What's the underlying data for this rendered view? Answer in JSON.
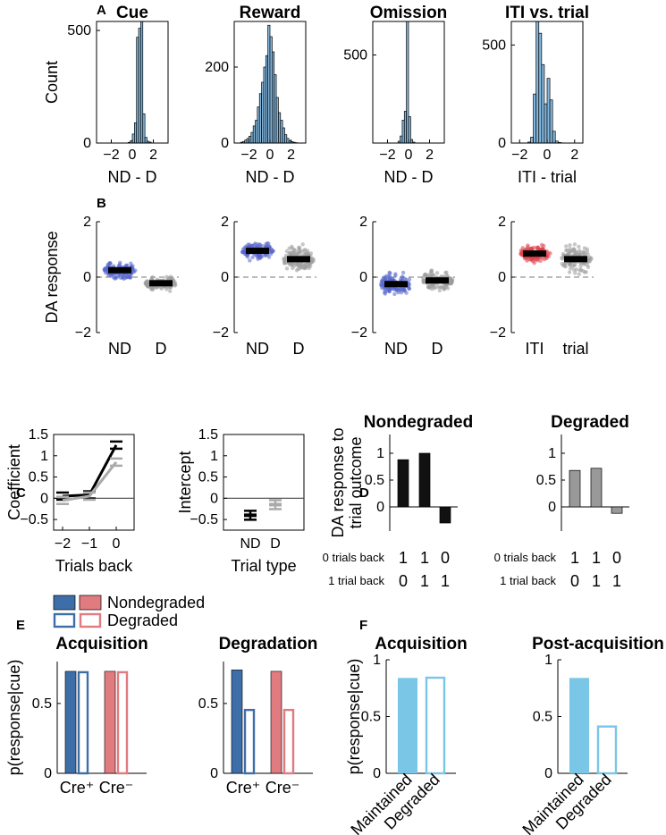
{
  "panel_labels": [
    "A",
    "B",
    "C",
    "D",
    "E",
    "F"
  ],
  "chart_data": [
    {
      "id": "A1",
      "type": "bar",
      "subtype": "histogram",
      "title": "Cue",
      "xlabel": "ND - D",
      "ylabel": "Count",
      "xlim": [
        -3.4,
        3.4
      ],
      "ylim": [
        0,
        540
      ],
      "xticks": [
        "−2",
        "0",
        "2"
      ],
      "yticks": [
        "0",
        "500"
      ],
      "bin_edges": [
        -0.4,
        -0.2,
        0,
        0.2,
        0.4,
        0.6,
        0.8,
        1.0,
        1.2,
        1.4,
        1.6,
        1.8
      ],
      "values": [
        3,
        10,
        40,
        90,
        470,
        510,
        540,
        130,
        25,
        8,
        4
      ],
      "color": "#84b8df"
    },
    {
      "id": "A2",
      "type": "bar",
      "subtype": "histogram",
      "title": "Reward",
      "xlabel": "ND - D",
      "ylabel": "",
      "xlim": [
        -3.4,
        3.4
      ],
      "ylim": [
        0,
        320
      ],
      "xticks": [
        "−2",
        "0",
        "2"
      ],
      "yticks": [
        "0",
        "200"
      ],
      "bin_edges": [
        -2.8,
        -2.6,
        -2.4,
        -2.2,
        -2.0,
        -1.8,
        -1.6,
        -1.4,
        -1.2,
        -1.0,
        -0.8,
        -0.6,
        -0.4,
        -0.2,
        0,
        0.2,
        0.4,
        0.6,
        0.8,
        1.0,
        1.2,
        1.4,
        1.6,
        1.8,
        2.0,
        2.2,
        2.4,
        2.6
      ],
      "values": [
        2,
        4,
        8,
        12,
        18,
        28,
        45,
        60,
        95,
        130,
        160,
        200,
        230,
        310,
        280,
        240,
        180,
        120,
        80,
        60,
        40,
        22,
        12,
        6,
        4,
        2,
        1
      ],
      "color": "#84b8df"
    },
    {
      "id": "A3",
      "type": "bar",
      "subtype": "histogram",
      "title": "Omission",
      "xlabel": "ND - D",
      "ylabel": "",
      "xlim": [
        -3.4,
        3.4
      ],
      "ylim": [
        0,
        690
      ],
      "xticks": [
        "−2",
        "0",
        "2"
      ],
      "yticks": [
        "500"
      ],
      "bin_edges": [
        -1.0,
        -0.8,
        -0.6,
        -0.4,
        -0.2,
        0,
        0.2,
        0.4,
        0.6
      ],
      "values": [
        10,
        40,
        130,
        180,
        690,
        150,
        20,
        5
      ],
      "color": "#84b8df"
    },
    {
      "id": "A4",
      "type": "bar",
      "subtype": "histogram",
      "title": "ITI vs. trial",
      "xlabel": "ITI - trial",
      "ylabel": "",
      "xlim": [
        -2.6,
        2.6
      ],
      "ylim": [
        0,
        620
      ],
      "xticks": [
        "−2",
        "0",
        "2"
      ],
      "yticks": [
        "0",
        "500"
      ],
      "bin_edges": [
        -1.4,
        -1.2,
        -1.0,
        -0.8,
        -0.6,
        -0.4,
        -0.2,
        0,
        0.2,
        0.4,
        0.6,
        0.8,
        1.0,
        1.2
      ],
      "values": [
        5,
        30,
        250,
        620,
        560,
        400,
        200,
        330,
        220,
        60,
        10,
        3,
        1
      ],
      "color": "#84b8df"
    },
    {
      "id": "B1",
      "type": "scatter",
      "subtype": "swarm",
      "ylabel": "DA response",
      "ylim": [
        -2,
        2
      ],
      "yticks": [
        "−2",
        "0",
        "2"
      ],
      "categories": [
        "ND",
        "D"
      ],
      "means": [
        0.25,
        -0.22
      ],
      "spreads": [
        0.22,
        0.18
      ],
      "colors": [
        "#5566cc",
        "#9a9a9a"
      ]
    },
    {
      "id": "B2",
      "type": "scatter",
      "subtype": "swarm",
      "ylabel": "",
      "ylim": [
        -2,
        2
      ],
      "yticks": [
        "−2",
        "0",
        "2"
      ],
      "categories": [
        "ND",
        "D"
      ],
      "means": [
        0.95,
        0.65
      ],
      "spreads": [
        0.25,
        0.35
      ],
      "colors": [
        "#5566cc",
        "#9a9a9a"
      ]
    },
    {
      "id": "B3",
      "type": "scatter",
      "subtype": "swarm",
      "ylabel": "",
      "ylim": [
        -2,
        2
      ],
      "yticks": [
        "−2",
        "0",
        "2"
      ],
      "categories": [
        "ND",
        "D"
      ],
      "means": [
        -0.25,
        -0.12
      ],
      "spreads": [
        0.28,
        0.25
      ],
      "colors": [
        "#5566cc",
        "#9a9a9a"
      ]
    },
    {
      "id": "B4",
      "type": "scatter",
      "subtype": "swarm",
      "ylabel": "",
      "ylim": [
        -2,
        2
      ],
      "yticks": [
        "−2",
        "0",
        "2"
      ],
      "categories": [
        "ITI",
        "trial"
      ],
      "means": [
        0.85,
        0.65
      ],
      "spreads": [
        0.2,
        0.35
      ],
      "colors": [
        "#e0404a",
        "#9a9a9a"
      ]
    },
    {
      "id": "C1",
      "type": "line",
      "ylabel": "Coefficient",
      "xlabel": "Trials back",
      "ylim": [
        -0.75,
        1.5
      ],
      "yticks": [
        "−0.5",
        "0",
        "0.5",
        "1",
        "1.5"
      ],
      "xticks": [
        "−2",
        "−1",
        "0"
      ],
      "x": [
        -2,
        -1,
        0
      ],
      "series": [
        {
          "name": "ND",
          "values": [
            0.05,
            0.08,
            1.25
          ],
          "color": "#000000"
        },
        {
          "name": "D",
          "values": [
            -0.05,
            0.05,
            0.85
          ],
          "color": "#aaaaaa"
        }
      ]
    },
    {
      "id": "C2",
      "type": "scatter",
      "ylabel": "Intercept",
      "xlabel": "Trial type",
      "ylim": [
        -0.75,
        1.5
      ],
      "yticks": [
        "−0.5",
        "0",
        "0.5",
        "1",
        "1.5"
      ],
      "categories": [
        "ND",
        "D"
      ],
      "values": [
        -0.4,
        -0.15
      ],
      "colors": [
        "#000000",
        "#aaaaaa"
      ]
    },
    {
      "id": "D1",
      "type": "bar",
      "title": "Nondegraded",
      "ylabel": "DA response to trial outcome",
      "ylim": [
        -0.45,
        1.35
      ],
      "yticks": [
        "0",
        "0.5",
        "1"
      ],
      "values": [
        0.88,
        1.0,
        -0.3
      ],
      "color": "#111111",
      "row_labels": [
        "0 trials back",
        "1 trial back"
      ],
      "row1": [
        "1",
        "1",
        "0"
      ],
      "row2": [
        "0",
        "1",
        "1"
      ]
    },
    {
      "id": "D2",
      "type": "bar",
      "title": "Degraded",
      "ylabel": "",
      "ylim": [
        -0.45,
        1.35
      ],
      "yticks": [
        "0",
        "0.5",
        "1"
      ],
      "values": [
        0.68,
        0.72,
        -0.12
      ],
      "color": "#999999",
      "row_labels": [
        "0 trials back",
        "1 trial back"
      ],
      "row1": [
        "1",
        "1",
        "0"
      ],
      "row2": [
        "0",
        "1",
        "1"
      ]
    },
    {
      "id": "E1",
      "type": "bar",
      "title": "Acquisition",
      "ylabel": "p(response|cue)",
      "ylim": [
        0,
        0.8
      ],
      "yticks": [
        "0",
        "0.5"
      ],
      "categories": [
        "Cre⁺",
        "Cre⁻"
      ],
      "series": [
        {
          "name": "Nondegraded",
          "values": [
            0.73,
            0.73
          ]
        },
        {
          "name": "Degraded",
          "values": [
            0.73,
            0.73
          ]
        }
      ],
      "colors": [
        "#3e6ea8",
        "#e07b80"
      ]
    },
    {
      "id": "E2",
      "type": "bar",
      "title": "Degradation",
      "ylabel": "",
      "ylim": [
        0,
        0.8
      ],
      "yticks": [
        "0",
        "0.5"
      ],
      "categories": [
        "Cre⁺",
        "Cre⁻"
      ],
      "series": [
        {
          "name": "Nondegraded",
          "values": [
            0.74,
            0.73
          ]
        },
        {
          "name": "Degraded",
          "values": [
            0.46,
            0.46
          ]
        }
      ],
      "colors": [
        "#3e6ea8",
        "#e07b80"
      ]
    },
    {
      "id": "F1",
      "type": "bar",
      "title": "Acquisition",
      "ylabel": "p(response|cue)",
      "ylim": [
        0,
        1
      ],
      "yticks": [
        "0",
        "0.5",
        "1"
      ],
      "categories": [
        "Maintained",
        "Degraded"
      ],
      "values": [
        0.84,
        0.85
      ],
      "color": "#79c6e6"
    },
    {
      "id": "F2",
      "type": "bar",
      "title": "Post-acquisition",
      "ylabel": "",
      "ylim": [
        0,
        1
      ],
      "yticks": [
        "0",
        "0.5",
        "1"
      ],
      "categories": [
        "Maintained",
        "Degraded"
      ],
      "values": [
        0.84,
        0.42
      ],
      "color": "#79c6e6"
    }
  ],
  "legend": {
    "nondegraded": "Nondegraded",
    "degraded": "Degraded"
  }
}
